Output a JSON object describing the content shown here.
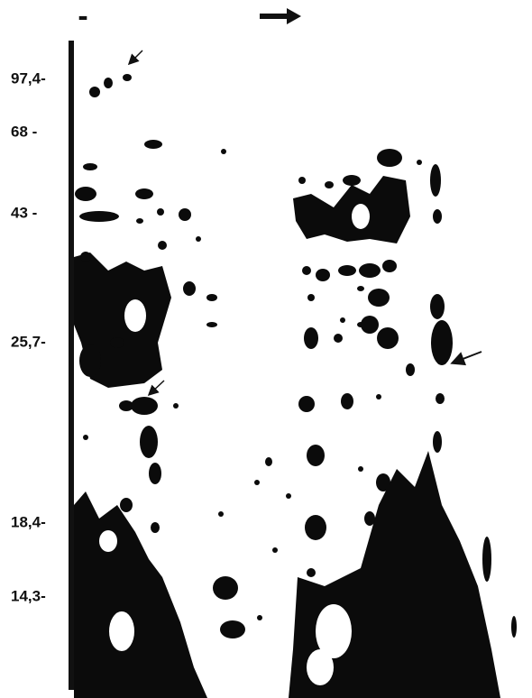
{
  "polarity": "-",
  "markers": [
    {
      "label": "97,4-"
    },
    {
      "label": "68 -"
    },
    {
      "label": "43 -"
    },
    {
      "label": "25,7-"
    },
    {
      "label": "18,4-"
    },
    {
      "label": "14,3-"
    }
  ]
}
